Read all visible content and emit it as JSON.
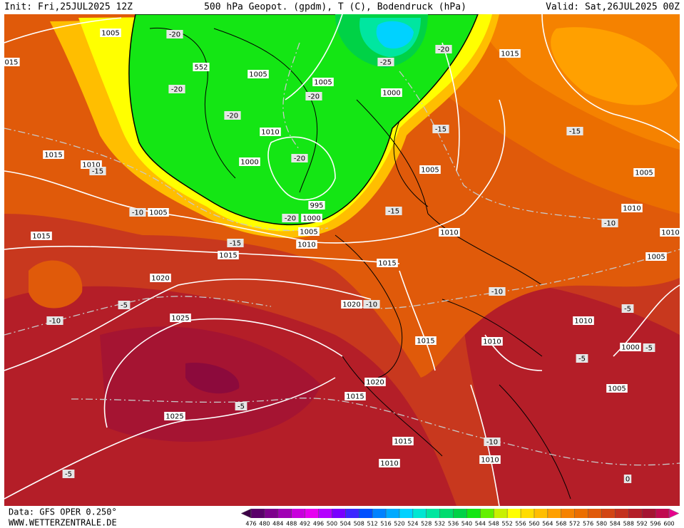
{
  "header": {
    "init": "Init: Fri,25JUL2025 12Z",
    "title": "500 hPa Geopot. (gpdm), T (C), Bodendruck (hPa)",
    "valid": "Valid: Sat,26JUL2025 00Z"
  },
  "footer": {
    "data": "Data: GFS OPER 0.250°",
    "url": "WWW.WETTERZENTRALE.DE"
  },
  "colorbar": {
    "labels": [
      476,
      480,
      484,
      488,
      492,
      496,
      500,
      504,
      508,
      512,
      516,
      520,
      524,
      528,
      532,
      536,
      540,
      544,
      548,
      552,
      556,
      560,
      564,
      568,
      572,
      576,
      580,
      584,
      588,
      592,
      596,
      600
    ],
    "colors": [
      "#3c0046",
      "#5a006a",
      "#7d008c",
      "#a000b4",
      "#c800dc",
      "#e600f0",
      "#b400ff",
      "#7800ff",
      "#3c28ff",
      "#0050ff",
      "#0082ff",
      "#00aaff",
      "#00d2ff",
      "#00e6d2",
      "#00e6a0",
      "#00dc6e",
      "#00d246",
      "#14e614",
      "#64f000",
      "#c8f000",
      "#ffff00",
      "#ffdc00",
      "#ffbe00",
      "#ffa000",
      "#f58200",
      "#eb6e00",
      "#e05a0a",
      "#d24614",
      "#c3321e",
      "#b41e28",
      "#a51432",
      "#c00a50",
      "#e6008c"
    ]
  },
  "map": {
    "isobar_labels": [
      "1005",
      "015",
      "552",
      "1005",
      "1005",
      "1000",
      "1015",
      "1010",
      "1015",
      "1010",
      "1000",
      "1005",
      "1005",
      "1005",
      "995",
      "1000",
      "1005",
      "1010",
      "1010",
      "1015",
      "1015",
      "1010",
      "1010",
      "1005",
      "1015",
      "1020",
      "1020",
      "1025",
      "1010",
      "1015",
      "1010",
      "1000",
      "1020",
      "1015",
      "1005",
      "1025",
      "1015",
      "1010",
      "1010"
    ],
    "temperature_labels": [
      "-20",
      "-20",
      "-25",
      "-20",
      "-20",
      "-20",
      "-15",
      "-15",
      "-20",
      "-15",
      "-10",
      "-20",
      "-15",
      "-10",
      "-15",
      "-10",
      "-5",
      "-10",
      "-10",
      "-5",
      "-5",
      "-5",
      "-5",
      "-10",
      "-5",
      "0"
    ]
  }
}
